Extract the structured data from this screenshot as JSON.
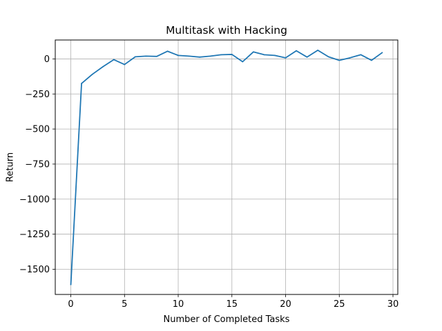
{
  "chart_data": {
    "type": "line",
    "title": "Multitask with Hacking",
    "xlabel": "Number of Completed Tasks",
    "ylabel": "Return",
    "xlim": [
      -1.45,
      30.45
    ],
    "ylim": [
      -1680,
      135
    ],
    "xticks": [
      0,
      5,
      10,
      15,
      20,
      25,
      30
    ],
    "yticks": [
      0,
      -250,
      -500,
      -750,
      -1000,
      -1250,
      -1500
    ],
    "xtick_labels": [
      "0",
      "5",
      "10",
      "15",
      "20",
      "25",
      "30"
    ],
    "ytick_labels": [
      "0",
      "−250",
      "−500",
      "−750",
      "−1000",
      "−1250",
      "−1500"
    ],
    "grid": true,
    "line_color": "#1f77b4",
    "series": [
      {
        "x": [
          0,
          1,
          2,
          3,
          4,
          5,
          6,
          7,
          8,
          9,
          10,
          11,
          12,
          13,
          14,
          15,
          16,
          17,
          18,
          19,
          20,
          21,
          22,
          23,
          24,
          25,
          26,
          27,
          28,
          29
        ],
        "values": [
          -1610,
          -175,
          -110,
          -55,
          -5,
          -40,
          15,
          20,
          18,
          55,
          25,
          20,
          13,
          20,
          30,
          32,
          -20,
          50,
          30,
          25,
          8,
          58,
          13,
          62,
          15,
          -10,
          8,
          30,
          -10,
          45
        ]
      }
    ]
  }
}
